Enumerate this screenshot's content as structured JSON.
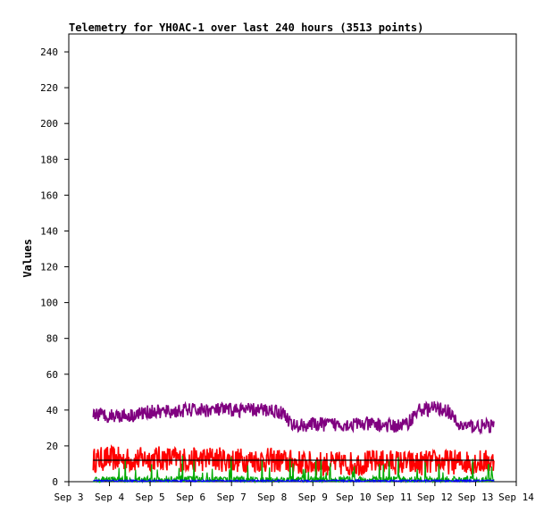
{
  "chart_data": {
    "type": "line",
    "title": "Telemetry for YH0AC-1 over last 240 hours (3513 points)",
    "xlabel": "",
    "ylabel": "Values",
    "x_ticks": [
      "Sep 3",
      "Sep 4",
      "Sep 5",
      "Sep 6",
      "Sep 7",
      "Sep 8",
      "Sep 9",
      "Sep 10",
      "Sep 11",
      "Sep 12",
      "Sep 13",
      "Sep 14"
    ],
    "x_range_days": [
      3,
      14
    ],
    "ylim": [
      0,
      250
    ],
    "y_ticks": [
      0,
      20,
      40,
      60,
      80,
      100,
      120,
      140,
      160,
      180,
      200,
      220,
      240
    ],
    "grid": false,
    "series": [
      {
        "color": "#800080",
        "x_days": [
          3.6,
          4.0,
          4.5,
          5.0,
          5.5,
          6.0,
          6.5,
          7.0,
          7.5,
          8.0,
          8.3,
          8.5,
          9.0,
          9.5,
          10.0,
          10.5,
          11.0,
          11.3,
          11.6,
          12.0,
          12.3,
          12.6,
          13.0,
          13.45
        ],
        "values": [
          38,
          37,
          37,
          39,
          39,
          40,
          40,
          40,
          40,
          40,
          38,
          31,
          32,
          32,
          32,
          32,
          31,
          32,
          40,
          41,
          40,
          31,
          31,
          31
        ],
        "noise": 4
      },
      {
        "color": "#ff0000",
        "x_days": [
          3.6,
          4.0,
          4.5,
          5.0,
          5.5,
          6.0,
          6.5,
          7.0,
          7.5,
          8.0,
          8.5,
          9.0,
          9.5,
          10.0,
          10.5,
          11.0,
          11.5,
          12.0,
          12.5,
          13.0,
          13.45
        ],
        "values": [
          12,
          13,
          12,
          13,
          13,
          12,
          13,
          12,
          12,
          12,
          11,
          10,
          10,
          10,
          11,
          11,
          10,
          11,
          11,
          11,
          11
        ],
        "noise": 7
      },
      {
        "color": "#00aa00",
        "x_days": [
          3.6,
          13.45
        ],
        "values": [
          1,
          1
        ],
        "noise": 2
      },
      {
        "color": "#0000ff",
        "x_days": [
          3.6,
          13.45
        ],
        "values": [
          0.5,
          0.5
        ],
        "noise": 0.5
      },
      {
        "color": "#000000",
        "x_days": [
          3.6,
          13.45
        ],
        "values": [
          12,
          12
        ],
        "noise": 0
      }
    ]
  }
}
